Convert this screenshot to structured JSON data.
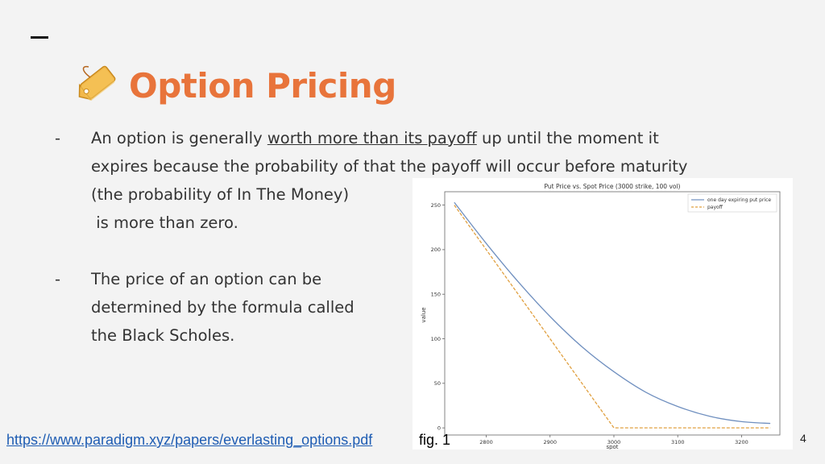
{
  "slide": {
    "title": "Option Pricing",
    "title_icon": "price-tag-icon",
    "accent_color": "#e8743b",
    "bullets": [
      {
        "marker": "-",
        "line1_pre": "An option is generally ",
        "line1_link": "worth more than its payoff",
        "line1_post": " up until the moment it",
        "line2": "expires because the probability of that the payoff will occur before maturity",
        "line3": "(the probability of In The Money)",
        "line4": " is more than zero."
      },
      {
        "marker": "-",
        "line1": "The price of an option can be",
        "line2": "determined by the formula called",
        "line3": "the Black Scholes."
      }
    ],
    "source_link": "https://www.paradigm.xyz/papers/everlasting_options.pdf",
    "figure_label": "fig. 1",
    "page_number": "4"
  },
  "chart_data": {
    "type": "line",
    "title": "Put Price vs. Spot Price (3000 strike, 100 vol)",
    "xlabel": "spot",
    "ylabel": "value",
    "xlim": [
      2735,
      3260
    ],
    "ylim": [
      -8,
      265
    ],
    "xticks": [
      2800,
      2900,
      3000,
      3100,
      3200
    ],
    "yticks": [
      0,
      50,
      100,
      150,
      200,
      250
    ],
    "legend_position": "top-right",
    "series": [
      {
        "name": "one day expiring put price",
        "color": "#6f8fbf",
        "style": "solid",
        "x": [
          2750,
          2800,
          2850,
          2900,
          2950,
          3000,
          3050,
          3100,
          3150,
          3200,
          3245
        ],
        "y": [
          253,
          207,
          164,
          125,
          91,
          63,
          40,
          24,
          13,
          7,
          5
        ]
      },
      {
        "name": "payoff",
        "color": "#e0a040",
        "style": "dashed",
        "x": [
          2750,
          3000,
          3245
        ],
        "y": [
          250,
          0,
          0
        ]
      }
    ]
  }
}
